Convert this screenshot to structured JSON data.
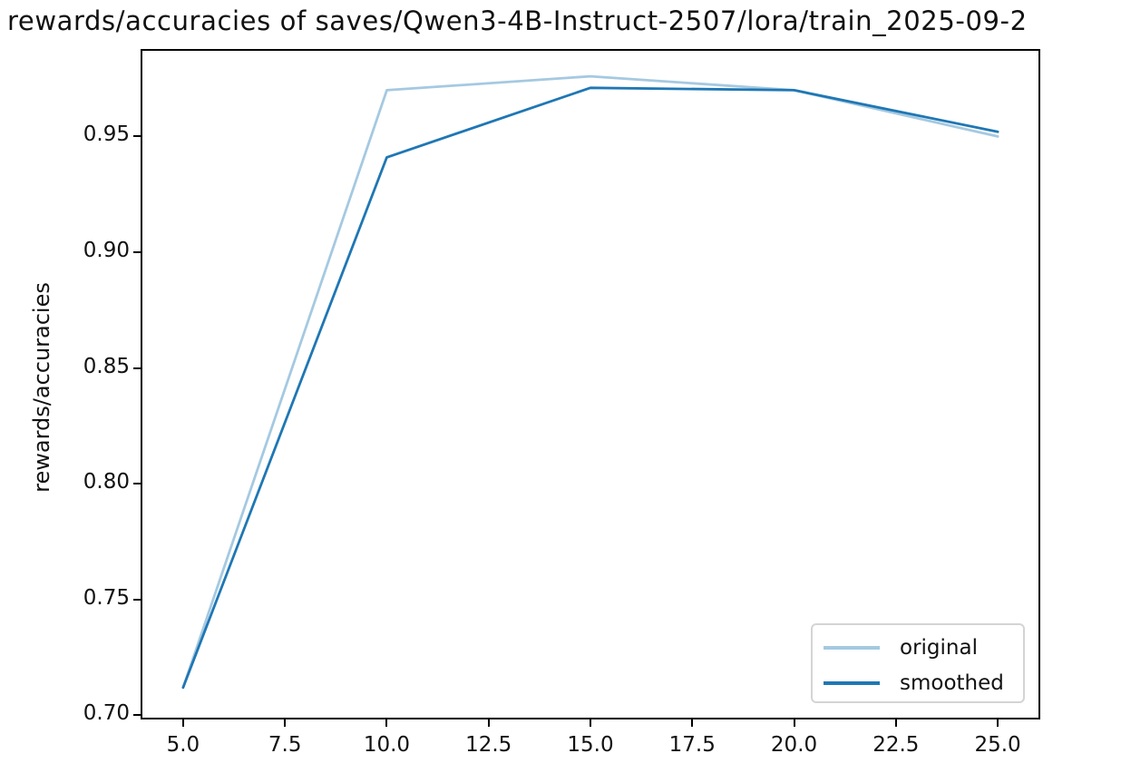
{
  "figure": {
    "background": "#ffffff",
    "spine_color": "#000000",
    "text_color": "#111111",
    "legend_border_color": "#d4d4d4"
  },
  "chart_data": {
    "type": "line",
    "title": "rewards/accuracies of saves/Qwen3-4B-Instruct-2507/lora/train_2025-09-2",
    "xlabel": "",
    "ylabel": "rewards/accuracies",
    "x": [
      5,
      10,
      15,
      20,
      25
    ],
    "series": [
      {
        "name": "original",
        "values": [
          0.712,
          0.97,
          0.976,
          0.97,
          0.95
        ],
        "color": "#1f77b4",
        "opacity": 0.4,
        "color_on_white": "#a5c9e1"
      },
      {
        "name": "smoothed",
        "values": [
          0.712,
          0.941,
          0.971,
          0.97,
          0.952
        ],
        "color": "#1f77b4",
        "opacity": 1.0
      }
    ],
    "xlim": [
      4,
      26
    ],
    "ylim": [
      0.699,
      0.987
    ],
    "xticks": [
      "5.0",
      "7.5",
      "10.0",
      "12.5",
      "15.0",
      "17.5",
      "20.0",
      "22.5",
      "25.0"
    ],
    "xtick_values": [
      5,
      7.5,
      10,
      12.5,
      15,
      17.5,
      20,
      22.5,
      25
    ],
    "yticks": [
      "0.70",
      "0.75",
      "0.80",
      "0.85",
      "0.90",
      "0.95"
    ],
    "ytick_values": [
      0.7,
      0.75,
      0.8,
      0.85,
      0.9,
      0.95
    ],
    "grid": false,
    "legend_position": "lower right",
    "legend_labels": [
      "original",
      "smoothed"
    ],
    "line_width": 2.8
  }
}
